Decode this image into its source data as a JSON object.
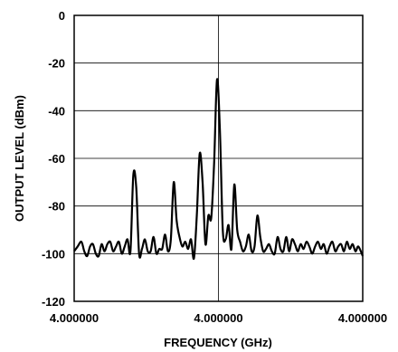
{
  "chart_data": {
    "type": "line",
    "title": "",
    "xlabel": "FREQUENCY (GHz)",
    "ylabel": "OUTPUT LEVEL (dBm)",
    "ylim": [
      -120,
      0
    ],
    "y_ticks": [
      0,
      -20,
      -40,
      -60,
      -80,
      -100,
      -120
    ],
    "y_tick_labels": [
      "0",
      "-20",
      "-40",
      "-60",
      "-80",
      "-100",
      "-120"
    ],
    "x_tick_labels": [
      "4.000000",
      "4.000000",
      "4.000000"
    ],
    "xlim": [
      0,
      1
    ],
    "grid": {
      "horizontal": true,
      "vertical_center_only": true
    },
    "legend": "none",
    "line_color": "#000000",
    "series": [
      {
        "x": [
          0.0,
          0.012,
          0.025,
          0.035,
          0.045,
          0.055,
          0.065,
          0.075,
          0.085,
          0.095,
          0.105,
          0.115,
          0.125,
          0.135,
          0.145,
          0.155,
          0.165,
          0.175,
          0.185,
          0.195,
          0.205,
          0.215,
          0.225,
          0.235,
          0.245,
          0.255,
          0.265,
          0.275,
          0.285,
          0.295,
          0.305,
          0.315,
          0.325,
          0.335,
          0.345,
          0.355,
          0.365,
          0.375,
          0.385,
          0.395,
          0.405,
          0.415,
          0.425,
          0.435,
          0.445,
          0.455,
          0.465,
          0.475,
          0.485,
          0.495,
          0.505,
          0.515,
          0.525,
          0.535,
          0.545,
          0.555,
          0.565,
          0.575,
          0.585,
          0.595,
          0.605,
          0.615,
          0.625,
          0.635,
          0.645,
          0.655,
          0.665,
          0.675,
          0.685,
          0.695,
          0.705,
          0.715,
          0.725,
          0.735,
          0.745,
          0.755,
          0.765,
          0.775,
          0.785,
          0.795,
          0.805,
          0.815,
          0.825,
          0.835,
          0.845,
          0.855,
          0.865,
          0.875,
          0.885,
          0.895,
          0.905,
          0.915,
          0.925,
          0.935,
          0.945,
          0.955,
          0.965,
          0.975,
          0.985,
          1.0
        ],
        "y": [
          -99,
          -97,
          -95,
          -99,
          -101,
          -97,
          -96,
          -100,
          -101,
          -96,
          -99,
          -96,
          -95,
          -99,
          -97,
          -95,
          -100,
          -97,
          -94,
          -99,
          -67,
          -72,
          -100,
          -98,
          -94,
          -99,
          -99,
          -93,
          -100,
          -98,
          -98,
          -92,
          -99,
          -94,
          -70,
          -86,
          -93,
          -97,
          -95,
          -98,
          -94,
          -102,
          -84,
          -58,
          -70,
          -96,
          -84,
          -85,
          -62,
          -27,
          -48,
          -90,
          -94,
          -88,
          -98,
          -71,
          -90,
          -95,
          -99,
          -97,
          -92,
          -99,
          -97,
          -84,
          -93,
          -99,
          -98,
          -96,
          -99,
          -100,
          -93,
          -98,
          -99,
          -93,
          -99,
          -94,
          -96,
          -99,
          -96,
          -98,
          -95,
          -97,
          -100,
          -97,
          -95,
          -98,
          -96,
          -100,
          -97,
          -95,
          -99,
          -97,
          -96,
          -99,
          -95,
          -98,
          -96,
          -99,
          -97,
          -101
        ]
      }
    ]
  }
}
